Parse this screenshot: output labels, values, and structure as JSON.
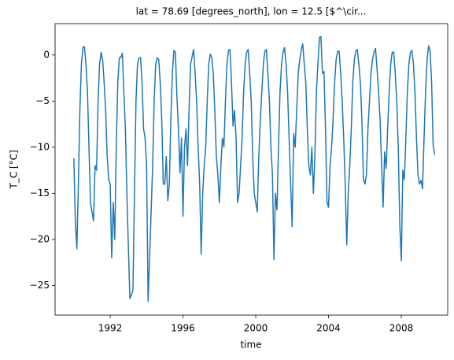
{
  "chart_data": {
    "type": "line",
    "title": "lat = 78.69 [degrees_north], lon = 12.5 [$^\\cir...",
    "xlabel": "time",
    "ylabel": "T_C [°C]",
    "xlim": [
      1988.97,
      2010.55
    ],
    "ylim": [
      -28.2,
      3.4
    ],
    "xticks": [
      1992,
      1996,
      2000,
      2004,
      2008
    ],
    "yticks": [
      {
        "value": -25,
        "label": "−25"
      },
      {
        "value": -20,
        "label": "−20"
      },
      {
        "value": -15,
        "label": "−15"
      },
      {
        "value": -10,
        "label": "−10"
      },
      {
        "value": -5,
        "label": "−5"
      },
      0
    ],
    "grid": false,
    "x": [
      1990,
      1990.083,
      1990.167,
      1990.25,
      1990.333,
      1990.417,
      1990.5,
      1990.583,
      1990.667,
      1990.75,
      1990.833,
      1990.917,
      1991,
      1991.083,
      1991.167,
      1991.25,
      1991.333,
      1991.417,
      1991.5,
      1991.583,
      1991.667,
      1991.75,
      1991.833,
      1991.917,
      1992,
      1992.083,
      1992.167,
      1992.25,
      1992.333,
      1992.417,
      1992.5,
      1992.583,
      1992.667,
      1992.75,
      1992.833,
      1992.917,
      1993,
      1993.083,
      1993.167,
      1993.25,
      1993.333,
      1993.417,
      1993.5,
      1993.583,
      1993.667,
      1993.75,
      1993.833,
      1993.917,
      1994,
      1994.083,
      1994.167,
      1994.25,
      1994.333,
      1994.417,
      1994.5,
      1994.583,
      1994.667,
      1994.75,
      1994.833,
      1994.917,
      1995,
      1995.083,
      1995.167,
      1995.25,
      1995.333,
      1995.417,
      1995.5,
      1995.583,
      1995.667,
      1995.75,
      1995.833,
      1995.917,
      1996,
      1996.083,
      1996.167,
      1996.25,
      1996.333,
      1996.417,
      1996.5,
      1996.583,
      1996.667,
      1996.75,
      1996.833,
      1996.917,
      1997,
      1997.083,
      1997.167,
      1997.25,
      1997.333,
      1997.417,
      1997.5,
      1997.583,
      1997.667,
      1997.75,
      1997.833,
      1997.917,
      1998,
      1998.083,
      1998.167,
      1998.25,
      1998.333,
      1998.417,
      1998.5,
      1998.583,
      1998.667,
      1998.75,
      1998.833,
      1998.917,
      1999,
      1999.083,
      1999.167,
      1999.25,
      1999.333,
      1999.417,
      1999.5,
      1999.583,
      1999.667,
      1999.75,
      1999.833,
      1999.917,
      2000,
      2000.083,
      2000.167,
      2000.25,
      2000.333,
      2000.417,
      2000.5,
      2000.583,
      2000.667,
      2000.75,
      2000.833,
      2000.917,
      2001,
      2001.083,
      2001.167,
      2001.25,
      2001.333,
      2001.417,
      2001.5,
      2001.583,
      2001.667,
      2001.75,
      2001.833,
      2001.917,
      2002,
      2002.083,
      2002.167,
      2002.25,
      2002.333,
      2002.417,
      2002.5,
      2002.583,
      2002.667,
      2002.75,
      2002.833,
      2002.917,
      2003,
      2003.083,
      2003.167,
      2003.25,
      2003.333,
      2003.417,
      2003.5,
      2003.583,
      2003.667,
      2003.75,
      2003.833,
      2003.917,
      2004,
      2004.083,
      2004.167,
      2004.25,
      2004.333,
      2004.417,
      2004.5,
      2004.583,
      2004.667,
      2004.75,
      2004.833,
      2004.917,
      2005,
      2005.083,
      2005.167,
      2005.25,
      2005.333,
      2005.417,
      2005.5,
      2005.583,
      2005.667,
      2005.75,
      2005.833,
      2005.917,
      2006,
      2006.083,
      2006.167,
      2006.25,
      2006.333,
      2006.417,
      2006.5,
      2006.583,
      2006.667,
      2006.75,
      2006.833,
      2006.917,
      2007,
      2007.083,
      2007.167,
      2007.25,
      2007.333,
      2007.417,
      2007.5,
      2007.583,
      2007.667,
      2007.75,
      2007.833,
      2007.917,
      2008,
      2008.083,
      2008.167,
      2008.25,
      2008.333,
      2008.417,
      2008.5,
      2008.583,
      2008.667,
      2008.75,
      2008.833,
      2008.917,
      2009,
      2009.083,
      2009.167,
      2009.25,
      2009.333,
      2009.417,
      2009.5,
      2009.583,
      2009.667,
      2009.75,
      2009.833
    ],
    "color": "#1f77b4",
    "values": [
      -11.2,
      -18,
      -21,
      -14,
      -6,
      -1,
      0.8,
      0.9,
      -1,
      -4,
      -10,
      -16,
      -17,
      -18,
      -12,
      -12.5,
      -5,
      -1,
      0.3,
      -0.5,
      -3,
      -6,
      -11,
      -13.5,
      -14,
      -22,
      -16,
      -20,
      -10,
      -3,
      -0.3,
      -0.3,
      0.2,
      -4,
      -8,
      -15,
      -21,
      -26.4,
      -26,
      -25.5,
      -15,
      -5,
      -1,
      -0.3,
      -0.3,
      -3,
      -8,
      -9,
      -12,
      -26.7,
      -22,
      -17,
      -12,
      -5,
      -1,
      -0.3,
      -0.5,
      -3,
      -7,
      -14,
      -14,
      -11,
      -15.8,
      -14,
      -7,
      -2,
      0.5,
      0.3,
      -4.5,
      -8,
      -12.8,
      -9,
      -17.5,
      -10,
      -8,
      -12,
      -6,
      -1,
      -0.2,
      0.6,
      -2,
      -5,
      -10,
      -14,
      -21.6,
      -15,
      -12,
      -10,
      -5,
      -1,
      0.1,
      -0.3,
      -2,
      -6,
      -11,
      -13,
      -16,
      -12,
      -9,
      -10,
      -5,
      -1,
      0.5,
      0.6,
      -3,
      -7.7,
      -6,
      -9,
      -16,
      -15,
      -12,
      -9,
      -4,
      -1,
      0.3,
      0.6,
      -2,
      -5,
      -11,
      -15,
      -16,
      -17,
      -11,
      -7,
      -4,
      -1,
      0.4,
      0.6,
      -2,
      -5,
      -10,
      -13,
      -22.2,
      -15,
      -16.8,
      -10,
      -4,
      -1,
      0.3,
      0.8,
      -1,
      -4,
      -9,
      -14,
      -18.6,
      -8.5,
      -10,
      -6,
      -2,
      -0.5,
      0.5,
      1.2,
      -1,
      -3,
      -8,
      -12,
      -13,
      -10,
      -15,
      -11,
      -4,
      -1,
      1.9,
      2.0,
      -2,
      -1.8,
      -8,
      -16,
      -16.5,
      -12,
      -10,
      -7,
      -3,
      -0.5,
      0.4,
      0.4,
      -2,
      -5,
      -9,
      -14,
      -20.6,
      -15,
      -12,
      -8,
      -3,
      -0.5,
      0.4,
      0.6,
      -1,
      -3,
      -7,
      -13.5,
      -14,
      -13,
      -8,
      -5,
      -2,
      -0.5,
      0.3,
      0.7,
      -1.5,
      -4,
      -7,
      -12,
      -16.5,
      -10.5,
      -12.3,
      -8,
      -4,
      -1,
      0.3,
      0.3,
      -2,
      -5,
      -10,
      -18.4,
      -22.3,
      -12.5,
      -13.5,
      -9,
      -4,
      -1,
      0.3,
      0.5,
      -1,
      -4,
      -9,
      -13,
      -14,
      -13.6,
      -14.5,
      -9,
      -4,
      -0.5,
      1.0,
      0.4,
      -3,
      -9.8,
      -10.8
    ]
  }
}
